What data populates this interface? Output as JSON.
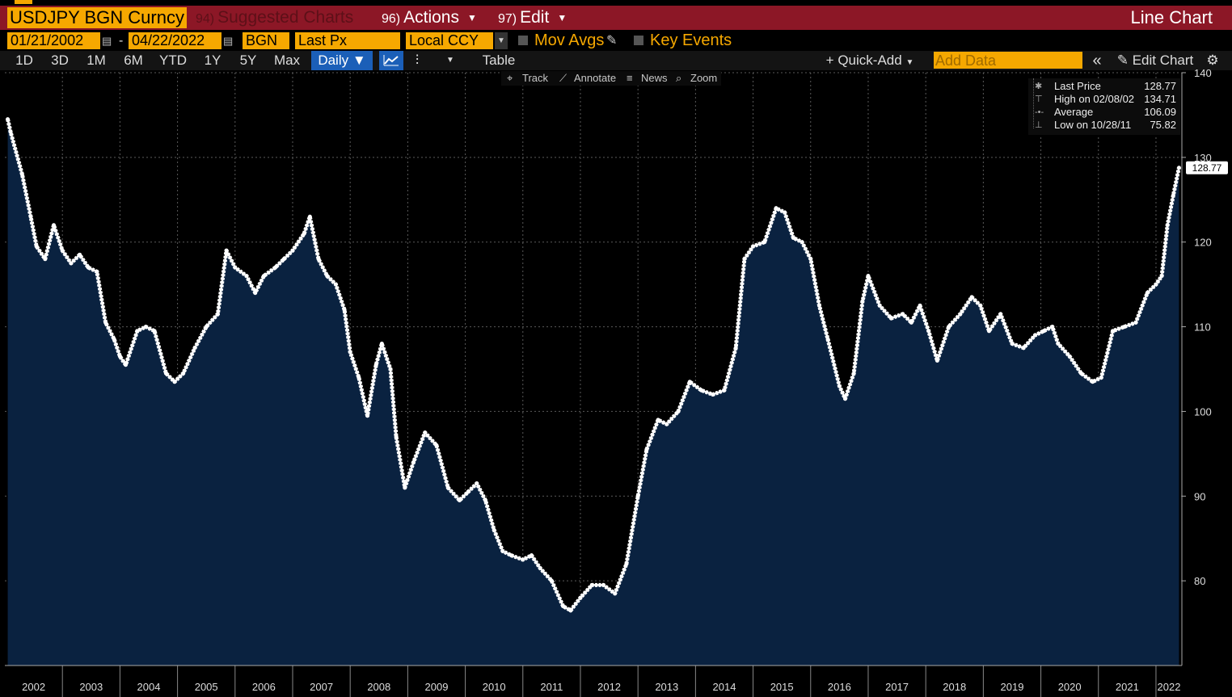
{
  "header": {
    "ticker": "USDJPY BGN Curncy",
    "suggested": {
      "num": "94)",
      "label": "Suggested Charts"
    },
    "actions": {
      "num": "96)",
      "label": "Actions"
    },
    "edit": {
      "num": "97)",
      "label": "Edit"
    },
    "chart_title": "Line Chart"
  },
  "params": {
    "start_date": "01/21/2002",
    "end_date": "04/22/2022",
    "source": "BGN",
    "field": "Last Px",
    "currency": "Local CCY",
    "mov_avgs": "Mov Avgs",
    "key_events": "Key Events"
  },
  "toolbar": {
    "periods": [
      "1D",
      "3D",
      "1M",
      "6M",
      "YTD",
      "1Y",
      "5Y",
      "Max"
    ],
    "frequency": "Daily",
    "table": "Table",
    "quick_add": "Quick-Add",
    "add_data_placeholder": "Add Data",
    "edit_chart": "Edit Chart"
  },
  "chart_tools": {
    "track": "Track",
    "annotate": "Annotate",
    "news": "News",
    "zoom": "Zoom"
  },
  "legend": {
    "last_label": "Last Price",
    "last_value": "128.77",
    "high_label": "High on 02/08/02",
    "high_value": "134.71",
    "avg_label": "Average",
    "avg_value": "106.09",
    "low_label": "Low on 10/28/11",
    "low_value": "75.82"
  },
  "colors": {
    "accent": "#f6a800",
    "titlebar": "#8c1726",
    "area": "#0a2240",
    "line": "#ffffff"
  },
  "chart_data": {
    "type": "area",
    "title": "",
    "xlabel": "",
    "ylabel": "",
    "x_ticks": [
      "2002",
      "2003",
      "2004",
      "2005",
      "2006",
      "2007",
      "2008",
      "2009",
      "2010",
      "2011",
      "2012",
      "2013",
      "2014",
      "2015",
      "2016",
      "2017",
      "2018",
      "2019",
      "2020",
      "2021",
      "2022"
    ],
    "y_ticks": [
      80,
      90,
      100,
      110,
      120,
      130,
      140
    ],
    "ylim": [
      70,
      140
    ],
    "xlim": [
      2002.0,
      2022.45
    ],
    "last_value_label": "128.77",
    "series": [
      {
        "x": [
          2002.05,
          2002.1,
          2002.3,
          2002.45,
          2002.55,
          2002.7,
          2002.85,
          2003.0,
          2003.15,
          2003.3,
          2003.45,
          2003.6,
          2003.75,
          2003.9,
          2004.0,
          2004.1,
          2004.3,
          2004.45,
          2004.6,
          2004.8,
          2004.95,
          2005.1,
          2005.3,
          2005.5,
          2005.7,
          2005.85,
          2006.0,
          2006.2,
          2006.35,
          2006.5,
          2006.7,
          2006.85,
          2007.0,
          2007.2,
          2007.3,
          2007.45,
          2007.6,
          2007.75,
          2007.9,
          2008.0,
          2008.15,
          2008.3,
          2008.45,
          2008.55,
          2008.7,
          2008.8,
          2008.95,
          2009.1,
          2009.3,
          2009.5,
          2009.7,
          2009.9,
          2010.05,
          2010.2,
          2010.35,
          2010.5,
          2010.65,
          2010.8,
          2011.0,
          2011.15,
          2011.3,
          2011.5,
          2011.7,
          2011.83,
          2012.0,
          2012.2,
          2012.4,
          2012.6,
          2012.8,
          2013.0,
          2013.15,
          2013.35,
          2013.5,
          2013.7,
          2013.9,
          2014.1,
          2014.3,
          2014.5,
          2014.7,
          2014.85,
          2015.0,
          2015.2,
          2015.4,
          2015.55,
          2015.7,
          2015.85,
          2016.0,
          2016.15,
          2016.3,
          2016.5,
          2016.6,
          2016.75,
          2016.9,
          2017.0,
          2017.2,
          2017.4,
          2017.6,
          2017.75,
          2017.9,
          2018.05,
          2018.2,
          2018.4,
          2018.6,
          2018.8,
          2018.95,
          2019.1,
          2019.3,
          2019.5,
          2019.7,
          2019.9,
          2020.05,
          2020.2,
          2020.3,
          2020.5,
          2020.7,
          2020.9,
          2021.05,
          2021.25,
          2021.45,
          2021.65,
          2021.85,
          2022.0,
          2022.1,
          2022.2,
          2022.3,
          2022.4
        ],
        "y": [
          134.5,
          133.0,
          128.0,
          123.0,
          119.5,
          118.0,
          122.0,
          119.0,
          117.5,
          118.5,
          117.0,
          116.5,
          110.5,
          108.5,
          106.5,
          105.5,
          109.5,
          110.0,
          109.5,
          104.5,
          103.5,
          104.5,
          107.5,
          110.0,
          111.5,
          119.0,
          117.0,
          116.0,
          114.0,
          116.0,
          117.0,
          118.0,
          119.0,
          121.0,
          123.0,
          118.0,
          116.0,
          115.0,
          112.0,
          107.0,
          104.0,
          99.5,
          105.5,
          108.0,
          105.0,
          97.0,
          91.0,
          94.0,
          97.5,
          96.0,
          91.0,
          89.5,
          90.5,
          91.5,
          89.5,
          86.0,
          83.5,
          83.0,
          82.5,
          83.0,
          81.5,
          80.0,
          77.0,
          76.5,
          78.0,
          79.5,
          79.5,
          78.5,
          82.0,
          90.0,
          95.5,
          99.0,
          98.5,
          100.0,
          103.5,
          102.5,
          102.0,
          102.5,
          107.5,
          118.0,
          119.5,
          120.0,
          124.0,
          123.5,
          120.5,
          120.0,
          118.0,
          112.5,
          108.5,
          103.0,
          101.5,
          104.5,
          113.0,
          116.0,
          112.5,
          111.0,
          111.5,
          110.5,
          112.5,
          109.5,
          106.0,
          110.0,
          111.5,
          113.5,
          112.5,
          109.5,
          111.5,
          108.0,
          107.5,
          109.0,
          109.5,
          110.0,
          108.0,
          106.5,
          104.5,
          103.5,
          104.0,
          109.5,
          110.0,
          110.5,
          114.0,
          115.0,
          116.0,
          122.0,
          125.5,
          128.77
        ]
      }
    ]
  }
}
